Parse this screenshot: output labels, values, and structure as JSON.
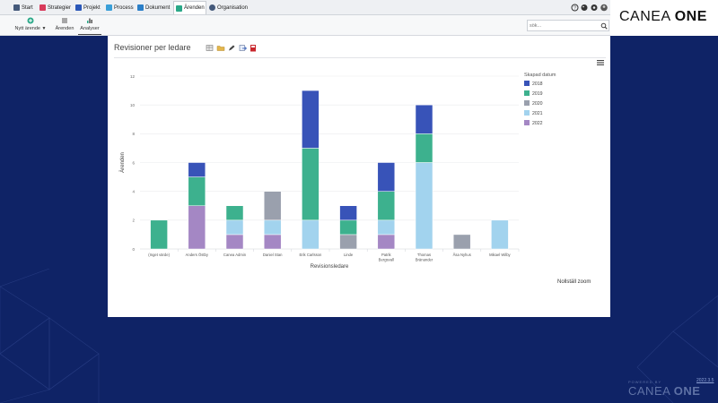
{
  "nav": {
    "tabs": [
      {
        "label": "Start",
        "icon": "home-icon",
        "color": "#44597a"
      },
      {
        "label": "Strategier",
        "icon": "strategy-icon",
        "color": "#d83a5a"
      },
      {
        "label": "Projekt",
        "icon": "project-icon",
        "color": "#2b57b8"
      },
      {
        "label": "Process",
        "icon": "process-icon",
        "color": "#3a9fd8"
      },
      {
        "label": "Dokument",
        "icon": "document-icon",
        "color": "#2b7fc8"
      },
      {
        "label": "Ärenden",
        "icon": "cases-icon",
        "color": "#2aa888"
      },
      {
        "label": "Organisation",
        "icon": "organisation-icon",
        "color": "#44597a"
      }
    ],
    "active_tab": "Ärenden"
  },
  "toolbar": {
    "new_case_label": "Nytt ärende",
    "cases_label": "Ärenden",
    "analyses_label": "Analyser",
    "search_placeholder": "sök..."
  },
  "brand": {
    "logo_part1": "CANEA",
    "logo_part2": "ONE",
    "powered_by": "POWERED BY",
    "version": "2022.3.5"
  },
  "card": {
    "title": "Revisioner per ledare",
    "reset_zoom": "Nollställ zoom"
  },
  "colors": {
    "background": "#0f2366",
    "accent_green": "#2aa888"
  },
  "chart_data": {
    "type": "bar",
    "stacked": true,
    "xlabel": "Revisionsledare",
    "ylabel": "Ärenden",
    "ylim": [
      0,
      12
    ],
    "yticks": [
      0,
      2,
      4,
      6,
      8,
      10,
      12
    ],
    "grid": true,
    "legend_title": "Skapad datum",
    "legend_position": "right",
    "categories": [
      "(Inget värde)",
      "Anders Östby",
      "Canea Admin",
      "Daniel Stan",
      "Erik Carlsson",
      "Linde",
      "Patrik Bergsvall",
      "Thomas Bränander",
      "Åsa Nyhus",
      "Mikael Wilby"
    ],
    "series": [
      {
        "name": "2022",
        "color": "#a487c4",
        "values": [
          0,
          3,
          1,
          1,
          0,
          0,
          1,
          0,
          0,
          0
        ]
      },
      {
        "name": "2021",
        "color": "#a2d3ee",
        "values": [
          0,
          0,
          1,
          1,
          2,
          0,
          1,
          6,
          0,
          2
        ]
      },
      {
        "name": "2020",
        "color": "#9aa0ad",
        "values": [
          0,
          0,
          0,
          2,
          0,
          1,
          0,
          0,
          1,
          0
        ]
      },
      {
        "name": "2019",
        "color": "#3db18e",
        "values": [
          2,
          2,
          1,
          0,
          5,
          1,
          2,
          2,
          0,
          0
        ]
      },
      {
        "name": "2018",
        "color": "#3853b8",
        "values": [
          0,
          1,
          0,
          0,
          4,
          1,
          2,
          2,
          0,
          0
        ]
      }
    ]
  }
}
